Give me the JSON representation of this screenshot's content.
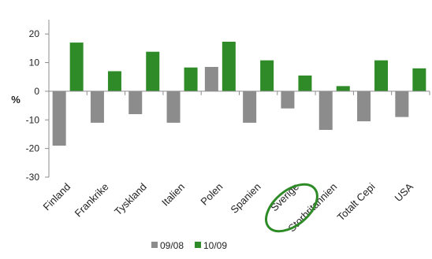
{
  "chart_data": {
    "type": "bar",
    "title": "",
    "xlabel": "",
    "ylabel": "%",
    "ylim": [
      -30,
      25
    ],
    "yticks": [
      -30,
      -20,
      -10,
      0,
      10,
      20
    ],
    "grid": false,
    "legend_position": "bottom",
    "categories": [
      "Finland",
      "Frankrike",
      "Tyskland",
      "Italien",
      "Polen",
      "Spanien",
      "Sverige",
      "Storbritannien",
      "Totalt Cepi",
      "USA"
    ],
    "highlighted_category": "Sverige",
    "series": [
      {
        "name": "09/08",
        "color": "#8c8c8c",
        "values": [
          -19,
          -11,
          -8,
          -11,
          8.5,
          -11,
          -6,
          -13.5,
          -10.5,
          -9
        ]
      },
      {
        "name": "10/09",
        "color": "#2e8b27",
        "values": [
          17,
          7,
          13.8,
          8.3,
          17.3,
          10.8,
          5.5,
          1.8,
          10.8,
          8
        ]
      }
    ],
    "highlight_color": "#2e8b27"
  }
}
